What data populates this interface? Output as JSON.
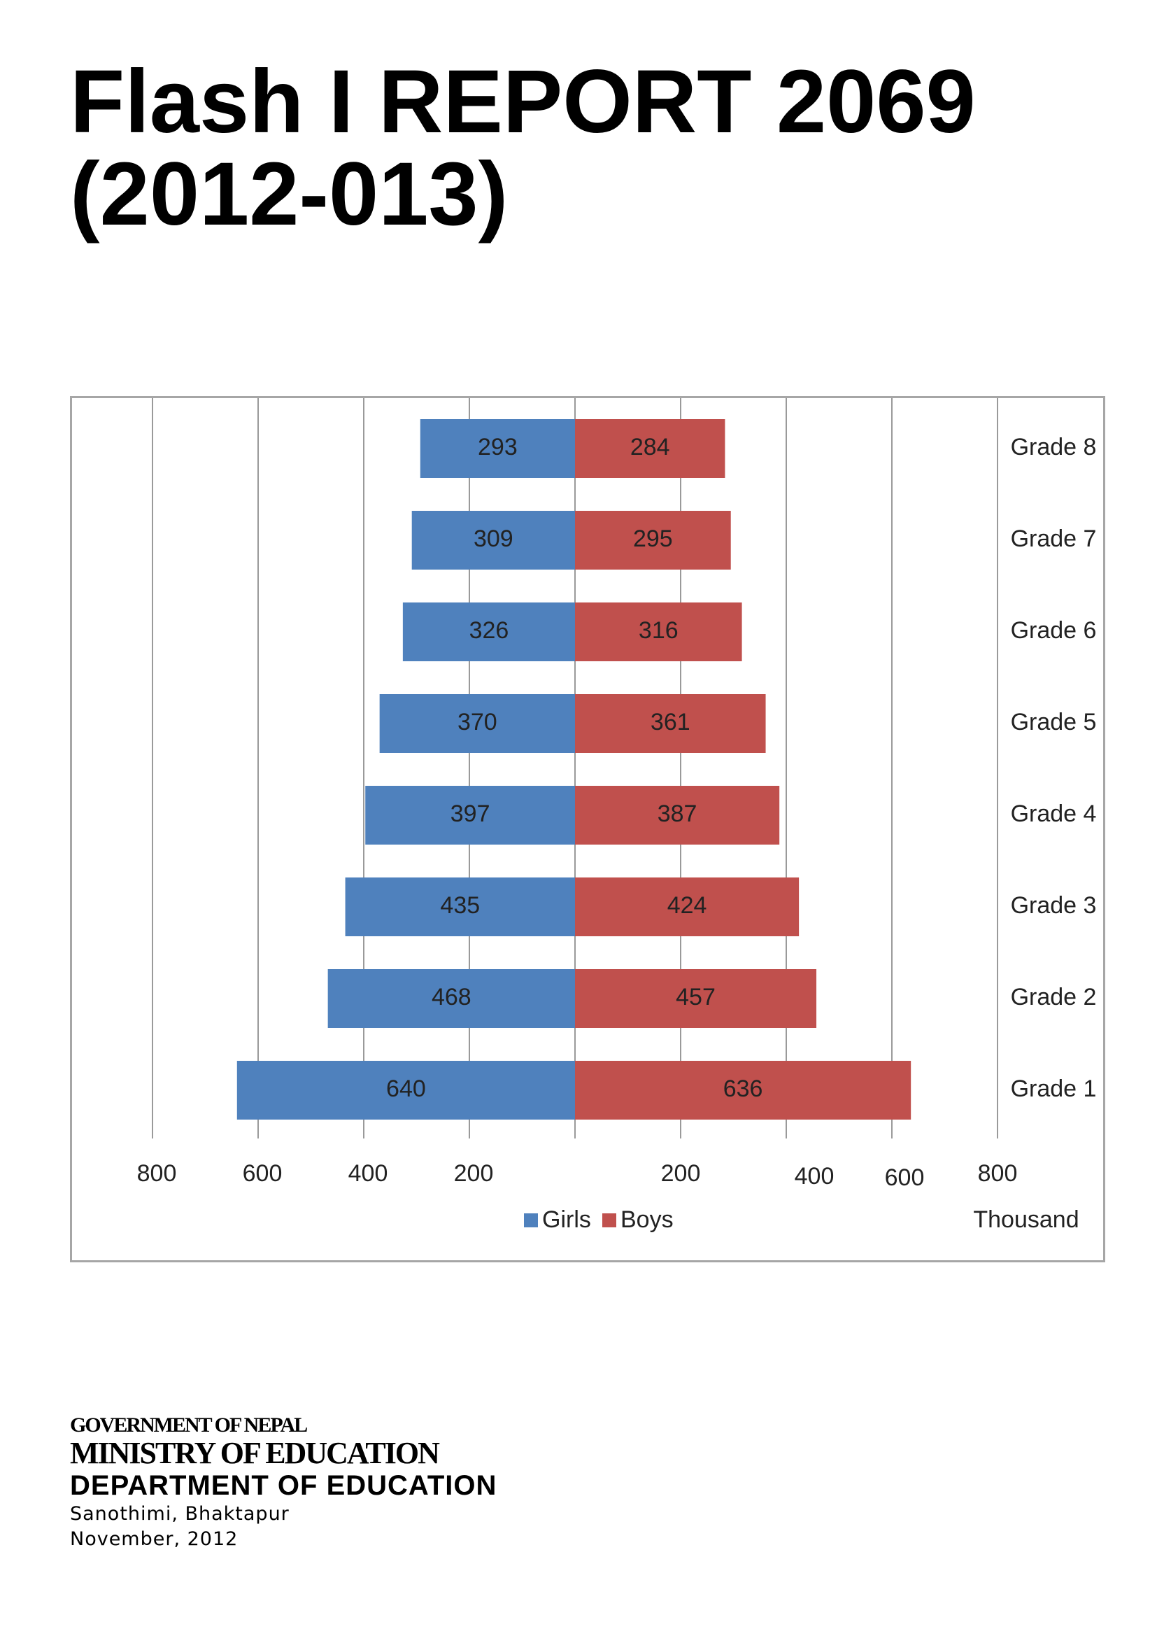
{
  "document": {
    "title_line1": "Flash I REPORT 2069",
    "title_line2": "(2012-013)"
  },
  "footer": {
    "government": "GOVERNMENT OF NEPAL",
    "ministry": "MINISTRY OF EDUCATION",
    "department": "DEPARTMENT OF EDUCATION",
    "address": "Sanothimi, Bhaktapur",
    "date": "November, 2012"
  },
  "colors": {
    "girls": "#4f81bd",
    "boys": "#c0504d",
    "grid": "#9a9a9a",
    "border": "#a6a6a6"
  },
  "chart_data": {
    "type": "bar",
    "orientation": "horizontal-diverging",
    "categories": [
      "Grade 8",
      "Grade 7",
      "Grade 6",
      "Grade 5",
      "Grade 4",
      "Grade 3",
      "Grade 2",
      "Grade 1"
    ],
    "series": [
      {
        "name": "Girls",
        "values": [
          293,
          309,
          326,
          370,
          397,
          435,
          468,
          640
        ]
      },
      {
        "name": "Boys",
        "values": [
          284,
          295,
          316,
          361,
          387,
          424,
          457,
          636
        ]
      }
    ],
    "x_tick_labels_left": [
      "800",
      "600",
      "400",
      "200"
    ],
    "x_tick_labels_right": [
      "200",
      "400",
      "600",
      "800"
    ],
    "x_unit_label": "Thousand",
    "xlim": [
      -800,
      800
    ],
    "grid": true,
    "legend_position": "bottom"
  }
}
